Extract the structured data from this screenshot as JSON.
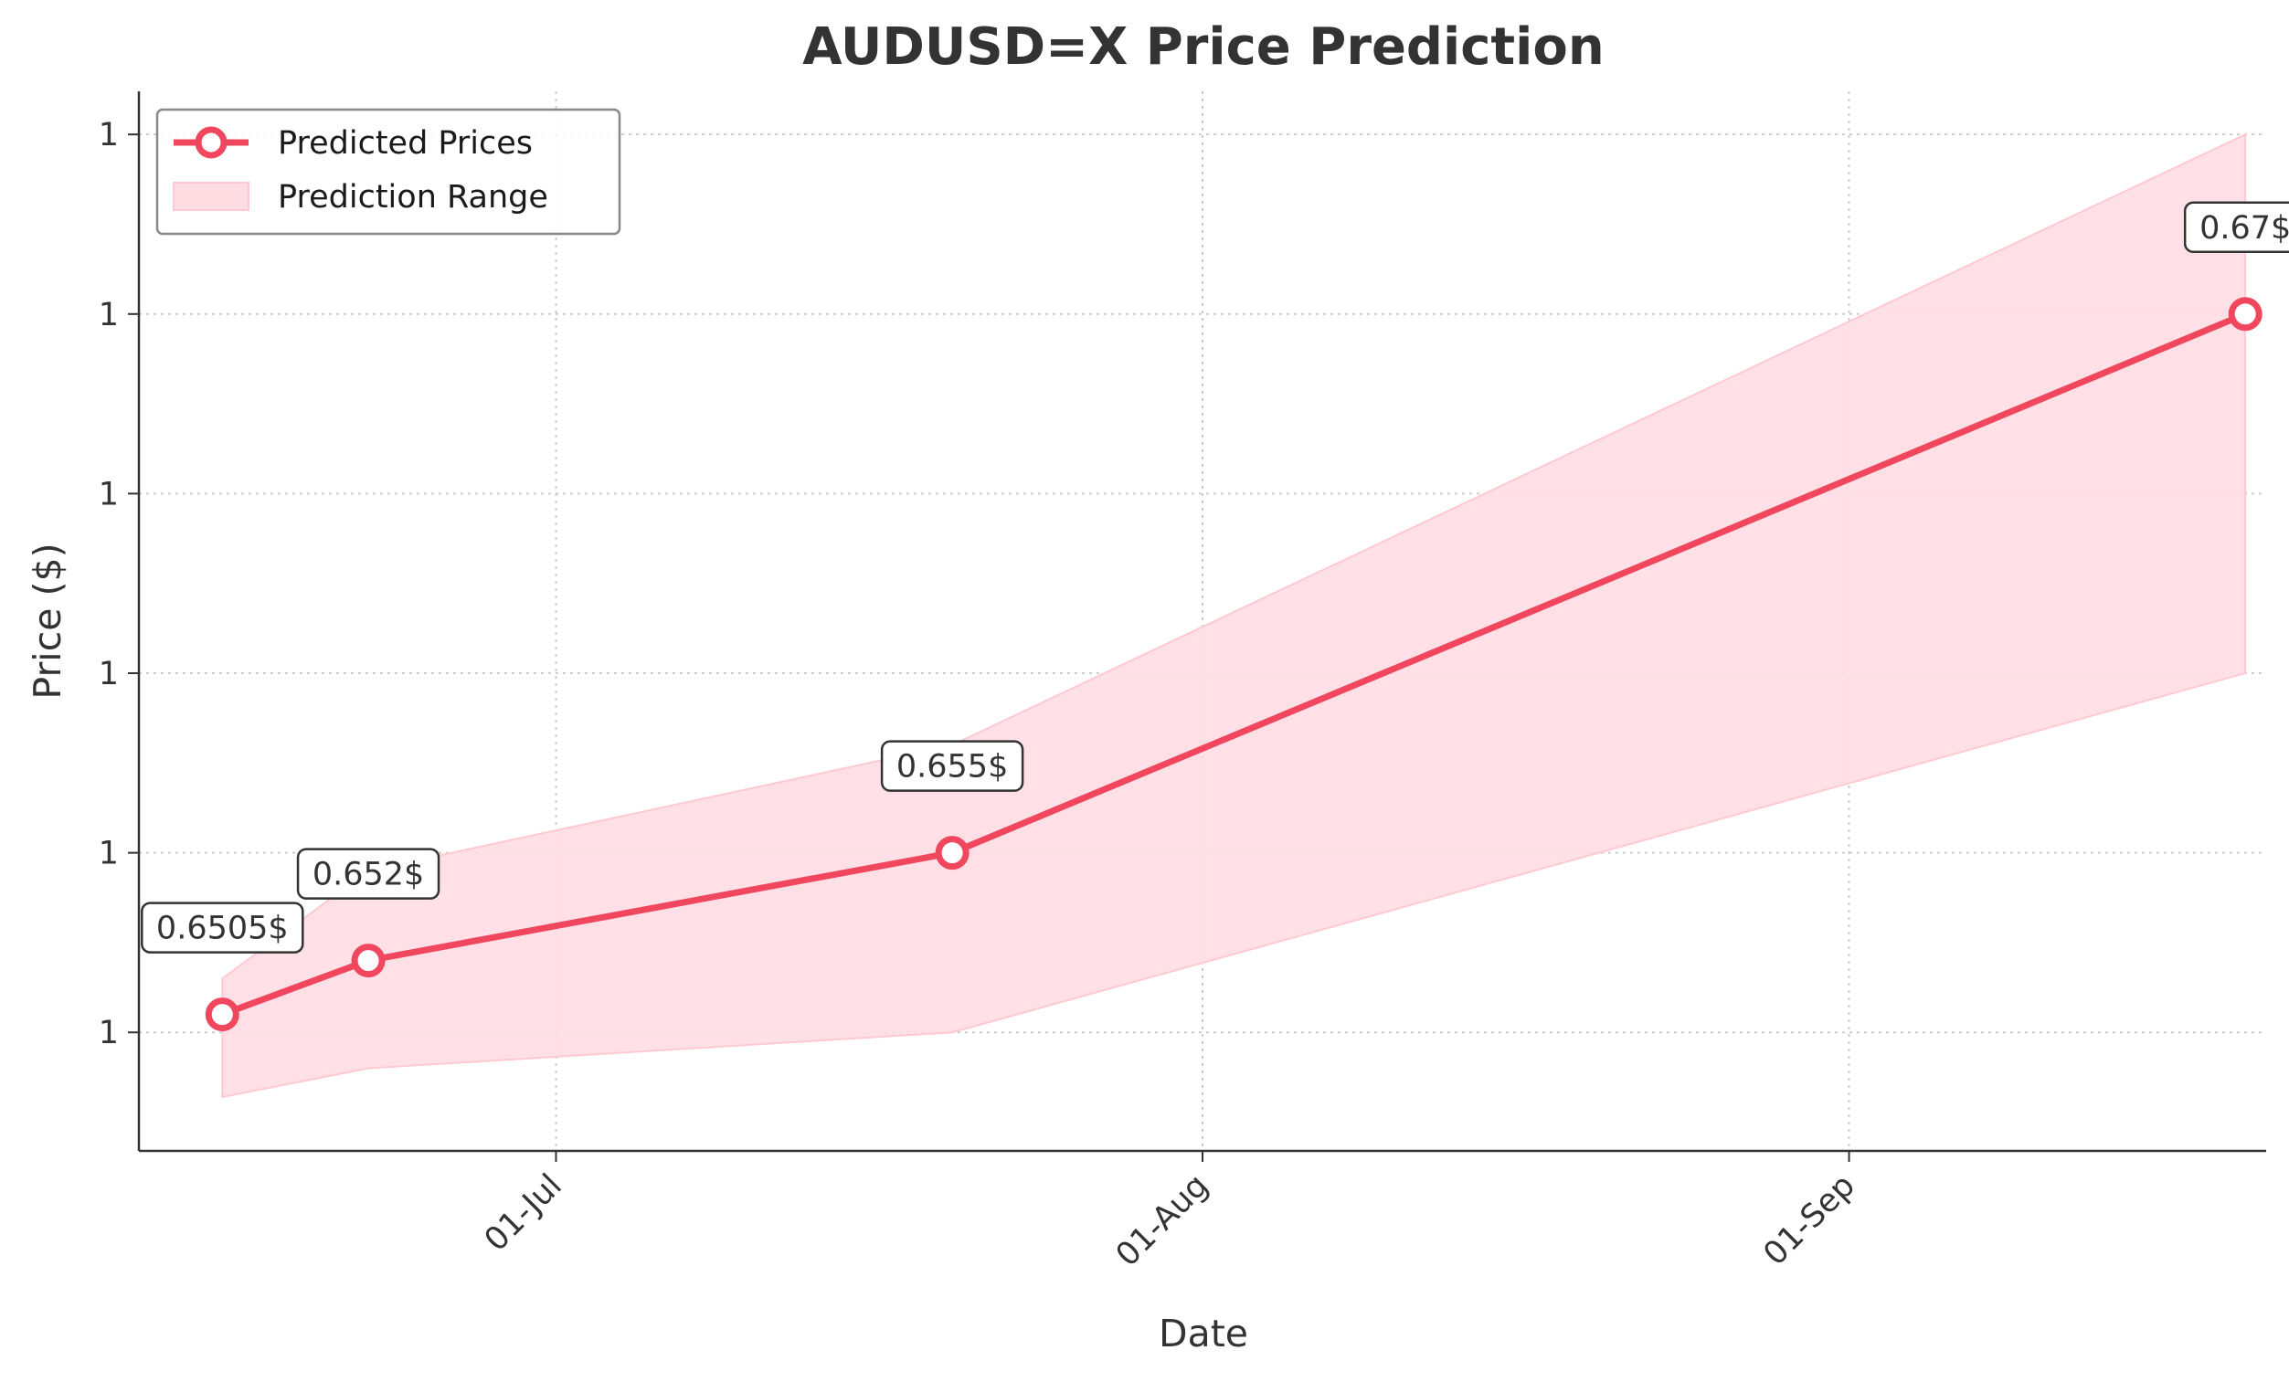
{
  "chart_data": {
    "type": "line",
    "title": "AUDUSD=X Price Prediction",
    "xlabel": "Date",
    "ylabel": "Price ($)",
    "x_ticks": [
      {
        "date": "2024-07-01",
        "label": "01-Jul"
      },
      {
        "date": "2024-08-01",
        "label": "01-Aug"
      },
      {
        "date": "2024-09-01",
        "label": "01-Sep"
      }
    ],
    "xlim": [
      "2024-06-11",
      "2024-09-21"
    ],
    "y_ticks": [
      {
        "value": 0.65,
        "label": "1"
      },
      {
        "value": 0.655,
        "label": "1"
      },
      {
        "value": 0.66,
        "label": "1"
      },
      {
        "value": 0.665,
        "label": "1"
      },
      {
        "value": 0.67,
        "label": "1"
      },
      {
        "value": 0.675,
        "label": "1"
      }
    ],
    "ylim": [
      0.6467,
      0.6762
    ],
    "grid": true,
    "legend": {
      "placement": "upper left",
      "entries": [
        "Predicted Prices",
        "Prediction Range"
      ]
    },
    "colors": {
      "line": "#f0475f",
      "fill": "#ffdde3"
    },
    "series": [
      {
        "name": "Predicted Prices",
        "x": [
          "2024-06-15",
          "2024-06-22",
          "2024-07-20",
          "2024-09-20"
        ],
        "values": [
          0.6505,
          0.652,
          0.655,
          0.67
        ],
        "annotations": [
          "0.6505$",
          "0.652$",
          "0.655$",
          "0.67$"
        ]
      },
      {
        "name": "Prediction Range",
        "x": [
          "2024-06-15",
          "2024-06-22",
          "2024-07-20",
          "2024-09-20"
        ],
        "lower": [
          0.6482,
          0.649,
          0.65,
          0.66
        ],
        "upper": [
          0.6515,
          0.6545,
          0.658,
          0.675
        ]
      }
    ]
  }
}
